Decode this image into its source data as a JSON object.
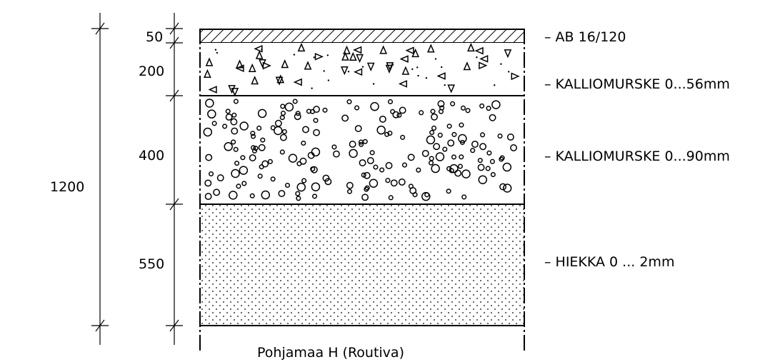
{
  "total_thickness": "1200",
  "layers": [
    {
      "thickness": "50",
      "label": "– AB 16/120",
      "material": "asphalt",
      "pattern": "diagonal-hatch"
    },
    {
      "thickness": "200",
      "label": "– KALLIOMURSKE 0...56mm",
      "material": "crushed-rock-fine",
      "pattern": "triangles-and-dots"
    },
    {
      "thickness": "400",
      "label": "– KALLIOMURSKE 0...90mm",
      "material": "crushed-rock-coarse",
      "pattern": "circles"
    },
    {
      "thickness": "550",
      "label": "– HIEKKA 0 ... 2mm",
      "material": "sand",
      "pattern": "dots"
    }
  ],
  "subgrade_label": "Pohjamaa H (Routiva)",
  "colors": {
    "ink": "#000000",
    "background": "#ffffff"
  }
}
